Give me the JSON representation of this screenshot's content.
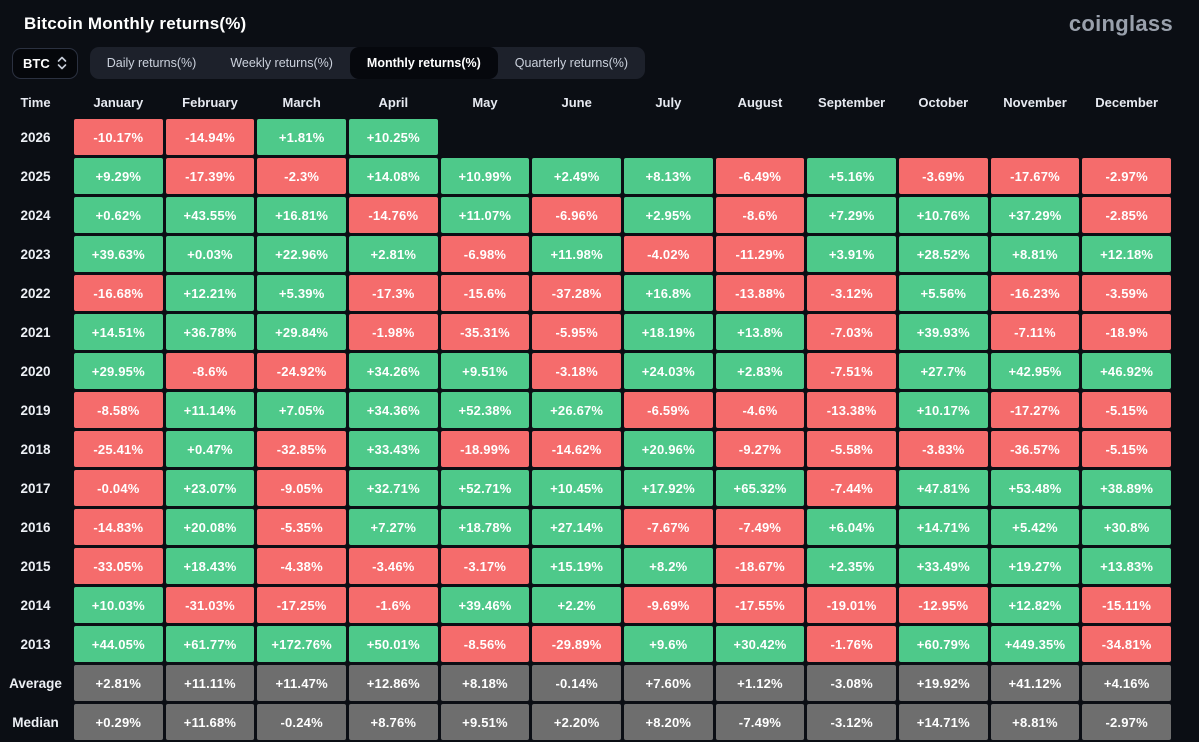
{
  "header": {
    "title": "Bitcoin Monthly returns(%)",
    "brand": "coinglass"
  },
  "controls": {
    "symbol_select": {
      "value": "BTC"
    },
    "tabs": [
      {
        "label": "Daily returns(%)",
        "active": false
      },
      {
        "label": "Weekly returns(%)",
        "active": false
      },
      {
        "label": "Monthly returns(%)",
        "active": true
      },
      {
        "label": "Quarterly returns(%)",
        "active": false
      }
    ]
  },
  "colors": {
    "positive": "#4ec98a",
    "negative": "#f56c6c",
    "summary": "#6e6e6e",
    "background": "#0b0e14"
  },
  "chart_data": {
    "type": "heatmap",
    "title": "Bitcoin Monthly returns(%)",
    "time_header": "Time",
    "columns": [
      "January",
      "February",
      "March",
      "April",
      "May",
      "June",
      "July",
      "August",
      "September",
      "October",
      "November",
      "December"
    ],
    "rows": [
      {
        "label": "2026",
        "kind": "year",
        "values": [
          "-10.17%",
          "-14.94%",
          "+1.81%",
          "+10.25%",
          null,
          null,
          null,
          null,
          null,
          null,
          null,
          null
        ]
      },
      {
        "label": "2025",
        "kind": "year",
        "values": [
          "+9.29%",
          "-17.39%",
          "-2.3%",
          "+14.08%",
          "+10.99%",
          "+2.49%",
          "+8.13%",
          "-6.49%",
          "+5.16%",
          "-3.69%",
          "-17.67%",
          "-2.97%"
        ]
      },
      {
        "label": "2024",
        "kind": "year",
        "values": [
          "+0.62%",
          "+43.55%",
          "+16.81%",
          "-14.76%",
          "+11.07%",
          "-6.96%",
          "+2.95%",
          "-8.6%",
          "+7.29%",
          "+10.76%",
          "+37.29%",
          "-2.85%"
        ]
      },
      {
        "label": "2023",
        "kind": "year",
        "values": [
          "+39.63%",
          "+0.03%",
          "+22.96%",
          "+2.81%",
          "-6.98%",
          "+11.98%",
          "-4.02%",
          "-11.29%",
          "+3.91%",
          "+28.52%",
          "+8.81%",
          "+12.18%"
        ]
      },
      {
        "label": "2022",
        "kind": "year",
        "values": [
          "-16.68%",
          "+12.21%",
          "+5.39%",
          "-17.3%",
          "-15.6%",
          "-37.28%",
          "+16.8%",
          "-13.88%",
          "-3.12%",
          "+5.56%",
          "-16.23%",
          "-3.59%"
        ]
      },
      {
        "label": "2021",
        "kind": "year",
        "values": [
          "+14.51%",
          "+36.78%",
          "+29.84%",
          "-1.98%",
          "-35.31%",
          "-5.95%",
          "+18.19%",
          "+13.8%",
          "-7.03%",
          "+39.93%",
          "-7.11%",
          "-18.9%"
        ]
      },
      {
        "label": "2020",
        "kind": "year",
        "values": [
          "+29.95%",
          "-8.6%",
          "-24.92%",
          "+34.26%",
          "+9.51%",
          "-3.18%",
          "+24.03%",
          "+2.83%",
          "-7.51%",
          "+27.7%",
          "+42.95%",
          "+46.92%"
        ]
      },
      {
        "label": "2019",
        "kind": "year",
        "values": [
          "-8.58%",
          "+11.14%",
          "+7.05%",
          "+34.36%",
          "+52.38%",
          "+26.67%",
          "-6.59%",
          "-4.6%",
          "-13.38%",
          "+10.17%",
          "-17.27%",
          "-5.15%"
        ]
      },
      {
        "label": "2018",
        "kind": "year",
        "values": [
          "-25.41%",
          "+0.47%",
          "-32.85%",
          "+33.43%",
          "-18.99%",
          "-14.62%",
          "+20.96%",
          "-9.27%",
          "-5.58%",
          "-3.83%",
          "-36.57%",
          "-5.15%"
        ]
      },
      {
        "label": "2017",
        "kind": "year",
        "values": [
          "-0.04%",
          "+23.07%",
          "-9.05%",
          "+32.71%",
          "+52.71%",
          "+10.45%",
          "+17.92%",
          "+65.32%",
          "-7.44%",
          "+47.81%",
          "+53.48%",
          "+38.89%"
        ]
      },
      {
        "label": "2016",
        "kind": "year",
        "values": [
          "-14.83%",
          "+20.08%",
          "-5.35%",
          "+7.27%",
          "+18.78%",
          "+27.14%",
          "-7.67%",
          "-7.49%",
          "+6.04%",
          "+14.71%",
          "+5.42%",
          "+30.8%"
        ]
      },
      {
        "label": "2015",
        "kind": "year",
        "values": [
          "-33.05%",
          "+18.43%",
          "-4.38%",
          "-3.46%",
          "-3.17%",
          "+15.19%",
          "+8.2%",
          "-18.67%",
          "+2.35%",
          "+33.49%",
          "+19.27%",
          "+13.83%"
        ]
      },
      {
        "label": "2014",
        "kind": "year",
        "values": [
          "+10.03%",
          "-31.03%",
          "-17.25%",
          "-1.6%",
          "+39.46%",
          "+2.2%",
          "-9.69%",
          "-17.55%",
          "-19.01%",
          "-12.95%",
          "+12.82%",
          "-15.11%"
        ]
      },
      {
        "label": "2013",
        "kind": "year",
        "values": [
          "+44.05%",
          "+61.77%",
          "+172.76%",
          "+50.01%",
          "-8.56%",
          "-29.89%",
          "+9.6%",
          "+30.42%",
          "-1.76%",
          "+60.79%",
          "+449.35%",
          "-34.81%"
        ]
      },
      {
        "label": "Average",
        "kind": "summary",
        "values": [
          "+2.81%",
          "+11.11%",
          "+11.47%",
          "+12.86%",
          "+8.18%",
          "-0.14%",
          "+7.60%",
          "+1.12%",
          "-3.08%",
          "+19.92%",
          "+41.12%",
          "+4.16%"
        ]
      },
      {
        "label": "Median",
        "kind": "summary",
        "values": [
          "+0.29%",
          "+11.68%",
          "-0.24%",
          "+8.76%",
          "+9.51%",
          "+2.20%",
          "+8.20%",
          "-7.49%",
          "-3.12%",
          "+14.71%",
          "+8.81%",
          "-2.97%"
        ]
      }
    ]
  }
}
